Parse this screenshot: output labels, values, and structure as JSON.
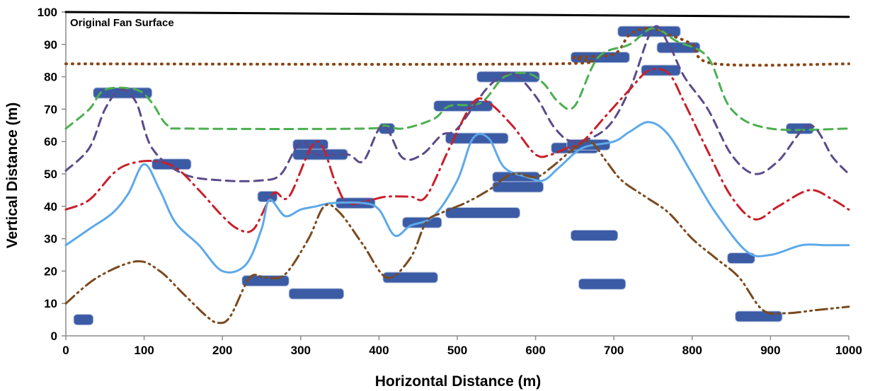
{
  "chart_data": {
    "type": "line",
    "title": "",
    "xlabel": "Horizontal Distance (m)",
    "ylabel": "Vertical Distance (m)",
    "xlim": [
      0,
      1000
    ],
    "ylim": [
      0,
      100
    ],
    "xticks": [
      "0",
      "100",
      "200",
      "300",
      "400",
      "500",
      "600",
      "700",
      "800",
      "900",
      "1000"
    ],
    "yticks": [
      "0",
      "10",
      "20",
      "30",
      "40",
      "50",
      "60",
      "70",
      "80",
      "90",
      "100"
    ],
    "grid": false,
    "legend": "none",
    "annotations": [
      {
        "text": "Original Fan Surface"
      }
    ],
    "series": [
      {
        "style": "solid",
        "color": "#000000",
        "points": [
          [
            0,
            100
          ],
          [
            1000,
            98.5
          ]
        ]
      },
      {
        "style": "dotted",
        "color": "#8B4513",
        "points": [
          [
            0,
            84
          ],
          [
            620,
            84
          ],
          [
            650,
            86
          ],
          [
            700,
            87
          ],
          [
            720,
            93
          ],
          [
            745,
            95
          ],
          [
            770,
            93
          ],
          [
            800,
            90
          ],
          [
            830,
            84
          ],
          [
            1000,
            84
          ]
        ]
      },
      {
        "style": "dashed",
        "color": "#4CAF50",
        "points": [
          [
            0,
            64
          ],
          [
            30,
            70
          ],
          [
            50,
            76
          ],
          [
            90,
            76
          ],
          [
            110,
            72
          ],
          [
            130,
            65
          ],
          [
            160,
            64
          ],
          [
            380,
            64
          ],
          [
            405,
            65
          ],
          [
            430,
            64
          ],
          [
            470,
            67
          ],
          [
            490,
            71
          ],
          [
            530,
            72
          ],
          [
            560,
            80
          ],
          [
            590,
            81
          ],
          [
            610,
            78
          ],
          [
            630,
            72
          ],
          [
            650,
            71
          ],
          [
            680,
            86
          ],
          [
            720,
            90
          ],
          [
            750,
            95
          ],
          [
            780,
            91
          ],
          [
            820,
            86
          ],
          [
            850,
            70
          ],
          [
            900,
            64
          ],
          [
            1000,
            64
          ]
        ]
      },
      {
        "style": "dashed",
        "color": "#5B4A8B",
        "points": [
          [
            0,
            51
          ],
          [
            30,
            58
          ],
          [
            50,
            70
          ],
          [
            70,
            76
          ],
          [
            90,
            72
          ],
          [
            110,
            58
          ],
          [
            150,
            50
          ],
          [
            200,
            48
          ],
          [
            250,
            48
          ],
          [
            275,
            50
          ],
          [
            300,
            60
          ],
          [
            320,
            56
          ],
          [
            360,
            56
          ],
          [
            380,
            54
          ],
          [
            405,
            65
          ],
          [
            430,
            55
          ],
          [
            455,
            56
          ],
          [
            480,
            62
          ],
          [
            500,
            64
          ],
          [
            540,
            77
          ],
          [
            570,
            81
          ],
          [
            600,
            74
          ],
          [
            625,
            64
          ],
          [
            650,
            60
          ],
          [
            690,
            64
          ],
          [
            720,
            76
          ],
          [
            750,
            95
          ],
          [
            770,
            90
          ],
          [
            790,
            80
          ],
          [
            820,
            70
          ],
          [
            850,
            56
          ],
          [
            880,
            50
          ],
          [
            910,
            54
          ],
          [
            950,
            65
          ],
          [
            980,
            55
          ],
          [
            1000,
            50
          ]
        ]
      },
      {
        "style": "dashdot",
        "color": "#C8202A",
        "points": [
          [
            0,
            39
          ],
          [
            30,
            42
          ],
          [
            60,
            50
          ],
          [
            80,
            53
          ],
          [
            110,
            54
          ],
          [
            140,
            52
          ],
          [
            170,
            45
          ],
          [
            200,
            37
          ],
          [
            220,
            33
          ],
          [
            240,
            33
          ],
          [
            265,
            44
          ],
          [
            285,
            43
          ],
          [
            320,
            60
          ],
          [
            345,
            47
          ],
          [
            360,
            41
          ],
          [
            390,
            42
          ],
          [
            410,
            43
          ],
          [
            440,
            43
          ],
          [
            460,
            43
          ],
          [
            490,
            58
          ],
          [
            520,
            72
          ],
          [
            540,
            72
          ],
          [
            570,
            65
          ],
          [
            600,
            56
          ],
          [
            620,
            56
          ],
          [
            640,
            58
          ],
          [
            660,
            60
          ],
          [
            690,
            68
          ],
          [
            720,
            76
          ],
          [
            745,
            82
          ],
          [
            770,
            81
          ],
          [
            790,
            72
          ],
          [
            820,
            57
          ],
          [
            850,
            43
          ],
          [
            880,
            36
          ],
          [
            910,
            40
          ],
          [
            950,
            45
          ],
          [
            980,
            42
          ],
          [
            1000,
            39
          ]
        ]
      },
      {
        "style": "solid",
        "color": "#5DA9E9",
        "points": [
          [
            0,
            28
          ],
          [
            30,
            33
          ],
          [
            60,
            38
          ],
          [
            80,
            44
          ],
          [
            100,
            53
          ],
          [
            120,
            45
          ],
          [
            140,
            35
          ],
          [
            170,
            28
          ],
          [
            200,
            20
          ],
          [
            230,
            22
          ],
          [
            250,
            33
          ],
          [
            260,
            42
          ],
          [
            280,
            37
          ],
          [
            300,
            39
          ],
          [
            320,
            40
          ],
          [
            340,
            41
          ],
          [
            380,
            41
          ],
          [
            400,
            39
          ],
          [
            420,
            31
          ],
          [
            440,
            34
          ],
          [
            470,
            37
          ],
          [
            500,
            48
          ],
          [
            520,
            61
          ],
          [
            540,
            61
          ],
          [
            560,
            52
          ],
          [
            590,
            49
          ],
          [
            610,
            48
          ],
          [
            630,
            52
          ],
          [
            660,
            58
          ],
          [
            700,
            60
          ],
          [
            720,
            63
          ],
          [
            745,
            66
          ],
          [
            770,
            62
          ],
          [
            800,
            50
          ],
          [
            830,
            38
          ],
          [
            870,
            26
          ],
          [
            900,
            25
          ],
          [
            940,
            28
          ],
          [
            970,
            28
          ],
          [
            1000,
            28
          ]
        ]
      },
      {
        "style": "dashdotdot",
        "color": "#7B4A1E",
        "points": [
          [
            0,
            10
          ],
          [
            40,
            18
          ],
          [
            90,
            23
          ],
          [
            120,
            20
          ],
          [
            150,
            13
          ],
          [
            180,
            6
          ],
          [
            195,
            4
          ],
          [
            210,
            6
          ],
          [
            235,
            18
          ],
          [
            255,
            18
          ],
          [
            280,
            19
          ],
          [
            310,
            30
          ],
          [
            330,
            40
          ],
          [
            350,
            38
          ],
          [
            380,
            28
          ],
          [
            410,
            18
          ],
          [
            440,
            24
          ],
          [
            460,
            35
          ],
          [
            480,
            38
          ],
          [
            510,
            41
          ],
          [
            540,
            45
          ],
          [
            570,
            50
          ],
          [
            600,
            49
          ],
          [
            620,
            52
          ],
          [
            650,
            58
          ],
          [
            670,
            60
          ],
          [
            690,
            54
          ],
          [
            710,
            48
          ],
          [
            740,
            43
          ],
          [
            770,
            38
          ],
          [
            800,
            30
          ],
          [
            830,
            24
          ],
          [
            860,
            18
          ],
          [
            890,
            8
          ],
          [
            920,
            7
          ],
          [
            960,
            8
          ],
          [
            1000,
            9
          ]
        ]
      }
    ],
    "bars": [
      [
        10,
        35,
        5
      ],
      [
        35,
        110,
        75
      ],
      [
        110,
        160,
        53
      ],
      [
        225,
        285,
        17
      ],
      [
        245,
        270,
        43
      ],
      [
        285,
        355,
        13
      ],
      [
        290,
        335,
        59
      ],
      [
        290,
        360,
        56
      ],
      [
        345,
        395,
        41
      ],
      [
        400,
        420,
        64
      ],
      [
        405,
        475,
        18
      ],
      [
        430,
        480,
        35
      ],
      [
        470,
        545,
        71
      ],
      [
        485,
        565,
        61
      ],
      [
        485,
        580,
        38
      ],
      [
        525,
        605,
        80
      ],
      [
        545,
        605,
        49
      ],
      [
        545,
        610,
        46
      ],
      [
        620,
        680,
        58
      ],
      [
        640,
        695,
        59
      ],
      [
        645,
        705,
        31
      ],
      [
        645,
        720,
        86
      ],
      [
        655,
        715,
        16
      ],
      [
        705,
        785,
        94
      ],
      [
        735,
        785,
        82
      ],
      [
        755,
        810,
        89
      ],
      [
        845,
        880,
        24
      ],
      [
        855,
        915,
        6
      ],
      [
        920,
        955,
        64
      ]
    ],
    "colors": {
      "bar_fill": "#3B5BA5",
      "axis": "#8C8C8C"
    }
  }
}
